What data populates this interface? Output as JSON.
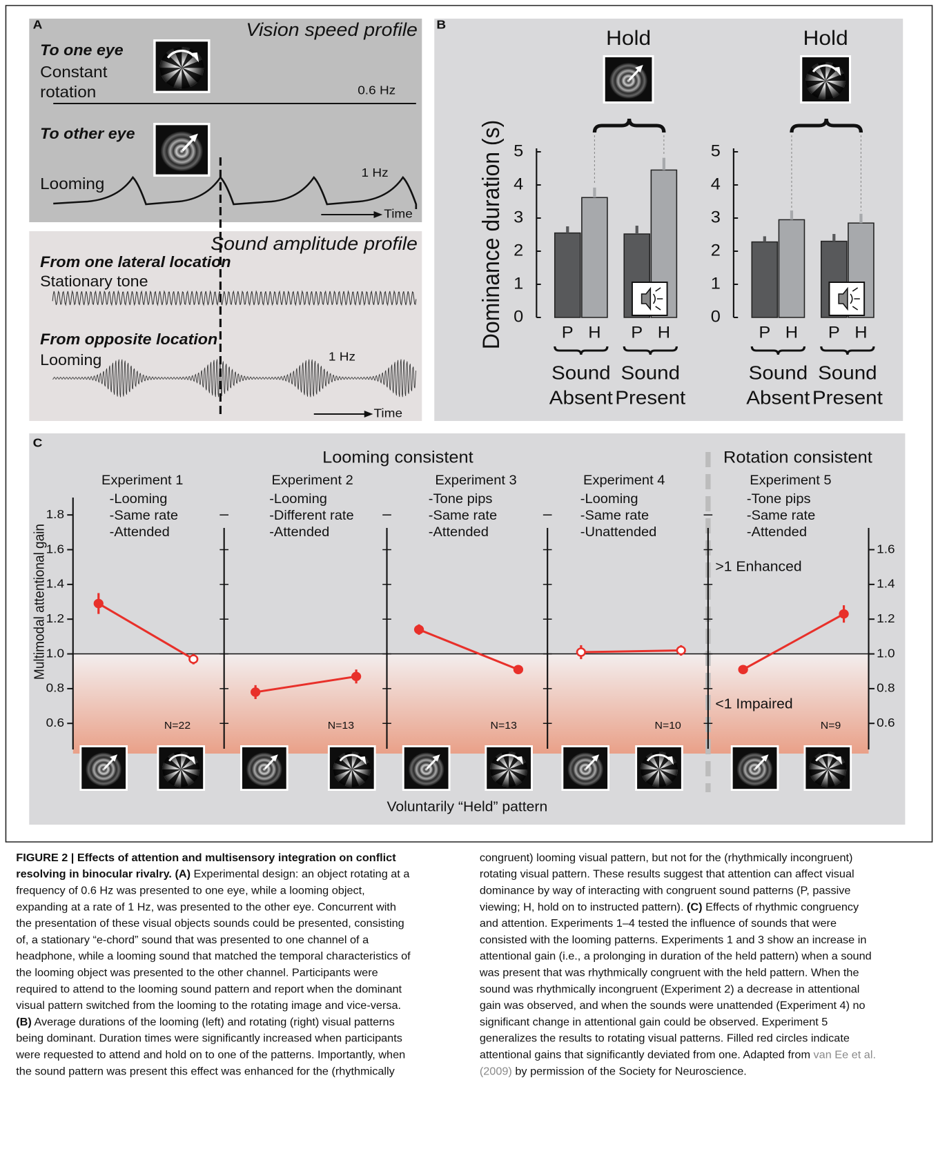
{
  "panel_a": {
    "label": "A",
    "vision_title": "Vision speed profile",
    "eye1_label": "To one eye",
    "eye1_desc": [
      "Constant",
      "rotation"
    ],
    "eye1_freq": "0.6 Hz",
    "eye2_label": "To other eye",
    "eye2_desc": "Looming",
    "eye2_freq": "1 Hz",
    "time_label": "Time",
    "sound_title": "Sound amplitude profile",
    "sound1_label": "From one lateral location",
    "sound1_desc": "Stationary tone",
    "sound2_label": "From opposite location",
    "sound2_desc": "Looming",
    "sound2_freq": "1 Hz",
    "sound_time_label": "Time"
  },
  "panel_b": {
    "label": "B",
    "y_label": "Dominance duration (s)",
    "ylim": [
      0,
      5
    ],
    "yticks": [
      0,
      1,
      2,
      3,
      4,
      5
    ],
    "groups": [
      {
        "title": "Hold",
        "conditions": [
          {
            "name": [
              "Sound",
              "Absent"
            ],
            "bars": [
              {
                "label": "P",
                "value": 2.55,
                "error": 0.2,
                "color": "#58595b"
              },
              {
                "label": "H",
                "value": 3.62,
                "error": 0.3,
                "color": "#a7a9ac"
              }
            ]
          },
          {
            "name": [
              "Sound",
              "Present"
            ],
            "bars": [
              {
                "label": "P",
                "value": 2.52,
                "error": 0.25,
                "color": "#58595b"
              },
              {
                "label": "H",
                "value": 4.45,
                "error": 0.37,
                "color": "#a7a9ac"
              }
            ]
          }
        ]
      },
      {
        "title": "Hold",
        "conditions": [
          {
            "name": [
              "Sound",
              "Absent"
            ],
            "bars": [
              {
                "label": "P",
                "value": 2.28,
                "error": 0.17,
                "color": "#58595b"
              },
              {
                "label": "H",
                "value": 2.95,
                "error": 0.28,
                "color": "#a7a9ac"
              }
            ]
          },
          {
            "name": [
              "Sound",
              "Present"
            ],
            "bars": [
              {
                "label": "P",
                "value": 2.3,
                "error": 0.22,
                "color": "#58595b"
              },
              {
                "label": "H",
                "value": 2.85,
                "error": 0.28,
                "color": "#a7a9ac"
              }
            ]
          }
        ]
      }
    ]
  },
  "panel_c": {
    "label": "C",
    "title_left": "Looming consistent",
    "title_right": "Rotation consistent",
    "y_label": "Multimodal attentional gain",
    "x_label": "Voluntarily “Held” pattern",
    "enhanced": ">1 Enhanced",
    "impaired": "<1 Impaired",
    "ylim": [
      0.45,
      1.9
    ],
    "yticks_left": [
      0.6,
      0.8,
      {
        "value": 1,
        "label": "1.0"
      },
      1.2,
      1.4,
      1.6,
      1.8
    ],
    "yticks_right": [
      0.6,
      0.8,
      {
        "value": 1,
        "label": "1.0"
      },
      1.2,
      1.4,
      1.6
    ],
    "reference": 1,
    "color": "#e8302a",
    "experiments": [
      {
        "title": "Experiment 1",
        "conditions": [
          "-Looming",
          "-Same rate",
          "-Attended"
        ],
        "n": "N=22",
        "points": [
          {
            "value": 1.29,
            "error": 0.06,
            "significant": true
          },
          {
            "value": 0.97,
            "error": 0.03,
            "significant": false
          }
        ]
      },
      {
        "title": "Experiment 2",
        "conditions": [
          "-Looming",
          "-Different rate",
          "-Attended"
        ],
        "n": "N=13",
        "points": [
          {
            "value": 0.78,
            "error": 0.04,
            "significant": true
          },
          {
            "value": 0.87,
            "error": 0.04,
            "significant": true
          }
        ]
      },
      {
        "title": "Experiment 3",
        "conditions": [
          "-Tone pips",
          "-Same rate",
          "-Attended"
        ],
        "n": "N=13",
        "points": [
          {
            "value": 1.14,
            "error": 0.03,
            "significant": true
          },
          {
            "value": 0.91,
            "error": 0.01,
            "significant": true
          }
        ]
      },
      {
        "title": "Experiment 4",
        "conditions": [
          "-Looming",
          "-Same rate",
          "-Unattended"
        ],
        "n": "N=10",
        "points": [
          {
            "value": 1.01,
            "error": 0.04,
            "significant": false
          },
          {
            "value": 1.02,
            "error": 0.03,
            "significant": false
          }
        ]
      },
      {
        "title": "Experiment 5",
        "conditions": [
          "-Tone pips",
          "-Same rate",
          "-Attended"
        ],
        "n": "N=9",
        "points": [
          {
            "value": 0.91,
            "error": 0.01,
            "significant": true
          },
          {
            "value": 1.23,
            "error": 0.05,
            "significant": true
          }
        ]
      }
    ]
  },
  "caption": {
    "left": [
      [
        {
          "text": "FIGURE 2 | Effects of attention and multisensory integration on conflict",
          "style": "bold"
        }
      ],
      [
        {
          "text": "resolving in binocular rivalry. (A)",
          "style": "bold"
        },
        " Experimental design: an object rotating at a"
      ],
      [
        "frequency of 0.6 Hz was presented to one eye, while a looming object,"
      ],
      [
        "expanding at a rate of 1 Hz, was presented to the other eye. Concurrent with"
      ],
      [
        "the presentation of these visual objects sounds could be presented, consisting"
      ],
      [
        "of, a stationary “e-chord” sound that was presented to one channel of a"
      ],
      [
        "headphone, while a looming sound that matched the temporal characteristics of"
      ],
      [
        "the looming object was presented to the other channel. Participants were"
      ],
      [
        "required to attend to the looming sound pattern and report when the dominant"
      ],
      [
        "visual pattern switched from the looming to the rotating image and vice-versa."
      ],
      [
        {
          "text": "(B)",
          "style": "bold"
        },
        " Average durations of the looming (left) and rotating (right) visual patterns"
      ],
      [
        "being dominant. Duration times were significantly increased when participants"
      ],
      [
        "were requested to attend and hold on to one of the patterns. Importantly, when"
      ],
      [
        "the sound pattern was present this effect was enhanced for the (rhythmically"
      ]
    ],
    "right": [
      [
        "congruent) looming visual pattern, but not for the (rhythmically incongruent)"
      ],
      [
        "rotating visual pattern. These results suggest that attention can affect visual"
      ],
      [
        "dominance by way of interacting with congruent sound patterns (P, passive"
      ],
      [
        "viewing; H, hold on to instructed pattern). ",
        {
          "text": "(C)",
          "style": "bold"
        },
        " Effects of rhythmic congruency"
      ],
      [
        "and attention. Experiments 1–4 tested the influence of sounds that were"
      ],
      [
        "consisted with the looming patterns. Experiments 1 and 3 show an increase in"
      ],
      [
        "attentional gain (i.e., a prolonging in duration of the held pattern) when a sound"
      ],
      [
        "was present that was rhythmically congruent with the held pattern. When the"
      ],
      [
        "sound was rhythmically incongruent (Experiment 2) a decrease in attentional"
      ],
      [
        "gain was observed, and when the sounds were unattended (Experiment 4) no"
      ],
      [
        "significant change in attentional gain could be observed. Experiment 5"
      ],
      [
        "generalizes the results to rotating visual patterns. Filled red circles indicate"
      ],
      [
        "attentional gains that significantly deviated from one. Adapted from ",
        {
          "text": "van Ee et al.",
          "style": "link"
        }
      ],
      [
        {
          "text": "(2009)",
          "style": "link"
        },
        " by permission of the Society for Neuroscience."
      ]
    ]
  }
}
